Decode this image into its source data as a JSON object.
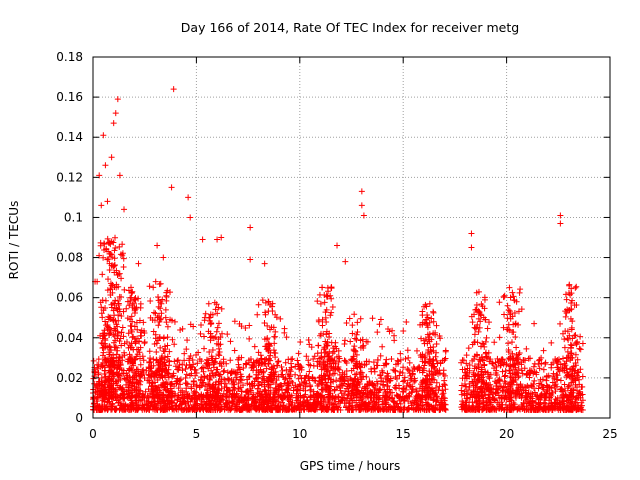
{
  "chart_data": {
    "type": "scatter",
    "title": "Day 166 of 2014, Rate Of TEC Index for receiver metg",
    "xlabel": "GPS time / hours",
    "ylabel": "ROTI / TECUs",
    "xlim": [
      0,
      25
    ],
    "ylim": [
      0,
      0.18
    ],
    "xticks": [
      0,
      5,
      10,
      15,
      20,
      25
    ],
    "yticks": [
      0,
      0.02,
      0.04,
      0.06,
      0.08,
      0.1,
      0.12,
      0.14,
      0.16,
      0.18
    ],
    "xtick_labels": [
      "0",
      "5",
      "10",
      "15",
      "20",
      "25"
    ],
    "ytick_labels": [
      "0",
      "0.02",
      "0.04",
      "0.06",
      "0.08",
      "0.1",
      "0.12",
      "0.14",
      "0.16",
      "0.18"
    ],
    "grid": true,
    "marker": "+",
    "color": "#ff0000",
    "data_gap_hours": [
      17.1,
      17.8
    ],
    "highlighted_points": [
      {
        "x": 0.3,
        "y": 0.121
      },
      {
        "x": 0.5,
        "y": 0.141
      },
      {
        "x": 0.6,
        "y": 0.126
      },
      {
        "x": 0.9,
        "y": 0.13
      },
      {
        "x": 1.0,
        "y": 0.147
      },
      {
        "x": 1.2,
        "y": 0.159
      },
      {
        "x": 1.1,
        "y": 0.152
      },
      {
        "x": 1.3,
        "y": 0.121
      },
      {
        "x": 0.4,
        "y": 0.106
      },
      {
        "x": 0.7,
        "y": 0.108
      },
      {
        "x": 1.5,
        "y": 0.104
      },
      {
        "x": 3.9,
        "y": 0.164
      },
      {
        "x": 3.8,
        "y": 0.115
      },
      {
        "x": 4.6,
        "y": 0.11
      },
      {
        "x": 4.7,
        "y": 0.1
      },
      {
        "x": 5.3,
        "y": 0.089
      },
      {
        "x": 6.0,
        "y": 0.089
      },
      {
        "x": 6.2,
        "y": 0.09
      },
      {
        "x": 7.6,
        "y": 0.095
      },
      {
        "x": 7.6,
        "y": 0.079
      },
      {
        "x": 8.3,
        "y": 0.077
      },
      {
        "x": 11.8,
        "y": 0.086
      },
      {
        "x": 12.2,
        "y": 0.078
      },
      {
        "x": 13.0,
        "y": 0.113
      },
      {
        "x": 13.0,
        "y": 0.106
      },
      {
        "x": 13.1,
        "y": 0.101
      },
      {
        "x": 18.3,
        "y": 0.092
      },
      {
        "x": 18.3,
        "y": 0.085
      },
      {
        "x": 22.6,
        "y": 0.101
      },
      {
        "x": 22.6,
        "y": 0.097
      },
      {
        "x": 2.2,
        "y": 0.077
      },
      {
        "x": 3.1,
        "y": 0.086
      },
      {
        "x": 3.4,
        "y": 0.08
      },
      {
        "x": 0.2,
        "y": 0.068
      },
      {
        "x": 0.9,
        "y": 0.088
      },
      {
        "x": 0.1,
        "y": 0.068
      }
    ],
    "bursts": [
      {
        "x": 0.9,
        "w": 0.7,
        "peak": 0.09,
        "n": 260
      },
      {
        "x": 2.0,
        "w": 0.6,
        "peak": 0.066,
        "n": 120
      },
      {
        "x": 3.3,
        "w": 0.6,
        "peak": 0.07,
        "n": 90
      },
      {
        "x": 5.8,
        "w": 0.5,
        "peak": 0.058,
        "n": 80
      },
      {
        "x": 8.5,
        "w": 0.6,
        "peak": 0.06,
        "n": 80
      },
      {
        "x": 11.3,
        "w": 0.5,
        "peak": 0.066,
        "n": 90
      },
      {
        "x": 12.7,
        "w": 0.4,
        "peak": 0.052,
        "n": 60
      },
      {
        "x": 16.2,
        "w": 0.5,
        "peak": 0.058,
        "n": 80
      },
      {
        "x": 18.7,
        "w": 0.5,
        "peak": 0.065,
        "n": 80
      },
      {
        "x": 20.2,
        "w": 0.6,
        "peak": 0.065,
        "n": 90
      },
      {
        "x": 23.1,
        "w": 0.4,
        "peak": 0.067,
        "n": 70
      }
    ],
    "baseline": {
      "min": 0.004,
      "typical_max": 0.03,
      "n": 2600
    }
  }
}
